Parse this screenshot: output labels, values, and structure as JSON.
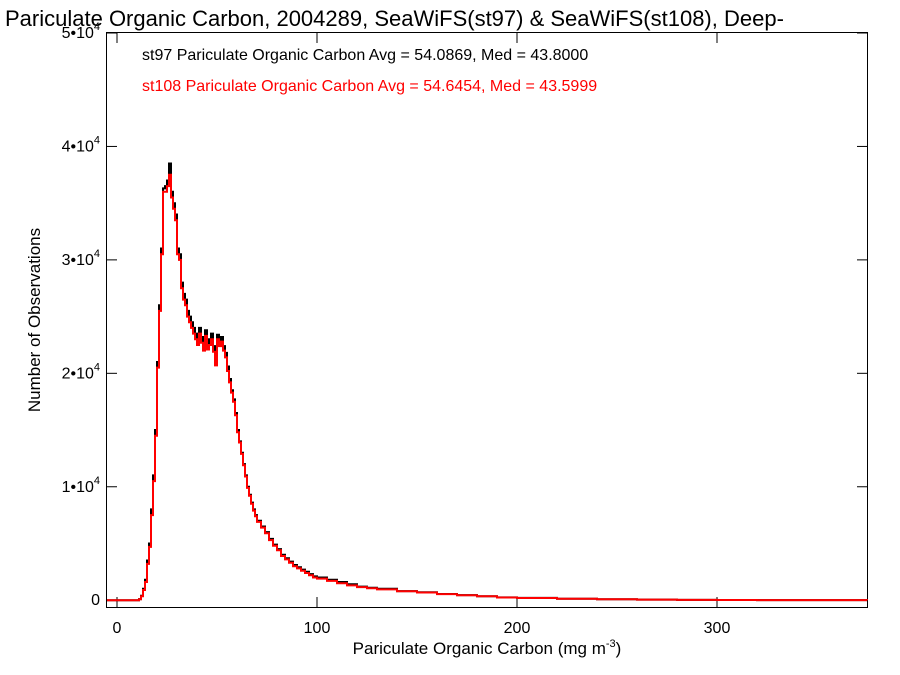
{
  "chart_data": {
    "type": "line",
    "title": "Pariculate Organic Carbon, 2004289, SeaWiFS(st97) & SeaWiFS(st108), Deep-",
    "xlabel": "Pariculate Organic Carbon (mg m",
    "xlabel_sup": "-3",
    "xlabel_end": ")",
    "ylabel": "Number of Observations",
    "xlim": [
      -5,
      375
    ],
    "ylim": [
      -600,
      50000
    ],
    "x_ticks": [
      {
        "value": 0,
        "label": "0"
      },
      {
        "value": 100,
        "label": "100"
      },
      {
        "value": 200,
        "label": "200"
      },
      {
        "value": 300,
        "label": "300"
      }
    ],
    "y_ticks": [
      {
        "value": 0,
        "mant": "0",
        "sup": ""
      },
      {
        "value": 10000,
        "mant": "1•10",
        "sup": "4"
      },
      {
        "value": 20000,
        "mant": "2•10",
        "sup": "4"
      },
      {
        "value": 30000,
        "mant": "3•10",
        "sup": "4"
      },
      {
        "value": 40000,
        "mant": "4•10",
        "sup": "4"
      },
      {
        "value": 50000,
        "mant": "5•10",
        "sup": "4"
      }
    ],
    "grid": false,
    "legend": "top-left",
    "series": [
      {
        "name": "st97 Pariculate Organic Carbon Avg = 54.0869, Med = 43.8000",
        "color": "#000000",
        "x": [
          -5,
          10,
          11,
          12,
          13,
          14,
          15,
          16,
          17,
          18,
          19,
          20,
          21,
          22,
          23,
          24,
          25,
          26,
          27,
          28,
          29,
          30,
          31,
          32,
          33,
          34,
          35,
          36,
          37,
          38,
          39,
          40,
          41,
          42,
          43,
          44,
          45,
          46,
          47,
          48,
          49,
          50,
          51,
          52,
          53,
          54,
          55,
          56,
          57,
          58,
          59,
          60,
          61,
          62,
          63,
          64,
          65,
          66,
          67,
          68,
          69,
          70,
          72,
          74,
          76,
          78,
          80,
          82,
          84,
          86,
          88,
          90,
          92,
          94,
          96,
          98,
          100,
          105,
          110,
          115,
          120,
          125,
          130,
          140,
          150,
          160,
          170,
          180,
          190,
          200,
          220,
          240,
          260,
          280,
          300,
          320,
          340,
          375
        ],
        "y": [
          0,
          0,
          100,
          400,
          1000,
          1800,
          3500,
          5000,
          8000,
          11000,
          15000,
          21000,
          26000,
          31000,
          36300,
          36500,
          37000,
          38500,
          36000,
          35000,
          34000,
          31000,
          30500,
          28000,
          27000,
          26500,
          25500,
          25000,
          24500,
          24000,
          23500,
          23000,
          24000,
          23200,
          22500,
          23800,
          22600,
          23000,
          23500,
          22400,
          21200,
          23400,
          22800,
          23200,
          22400,
          21800,
          20600,
          19500,
          18500,
          17700,
          16500,
          15000,
          14000,
          13000,
          12000,
          11000,
          10000,
          9300,
          8600,
          8000,
          7500,
          7000,
          6500,
          6000,
          5400,
          4900,
          4500,
          4000,
          3700,
          3400,
          3100,
          2900,
          2700,
          2500,
          2300,
          2100,
          2000,
          1800,
          1600,
          1400,
          1200,
          1100,
          1000,
          800,
          700,
          550,
          450,
          350,
          250,
          200,
          130,
          80,
          50,
          30,
          20,
          10,
          5,
          0
        ]
      },
      {
        "name": "st108 Pariculate Organic Carbon Avg = 54.6454, Med = 43.5999",
        "color": "#ff0000",
        "x": [
          -5,
          10,
          11,
          12,
          13,
          14,
          15,
          16,
          17,
          18,
          19,
          20,
          21,
          22,
          23,
          24,
          25,
          26,
          27,
          28,
          29,
          30,
          31,
          32,
          33,
          34,
          35,
          36,
          37,
          38,
          39,
          40,
          41,
          42,
          43,
          44,
          45,
          46,
          47,
          48,
          49,
          50,
          51,
          52,
          53,
          54,
          55,
          56,
          57,
          58,
          59,
          60,
          61,
          62,
          63,
          64,
          65,
          66,
          67,
          68,
          69,
          70,
          72,
          74,
          76,
          78,
          80,
          82,
          84,
          86,
          88,
          90,
          92,
          94,
          96,
          98,
          100,
          105,
          110,
          115,
          120,
          125,
          130,
          140,
          150,
          160,
          170,
          180,
          190,
          200,
          220,
          240,
          260,
          280,
          300,
          320,
          340,
          375
        ],
        "y": [
          0,
          0,
          80,
          350,
          900,
          1600,
          3200,
          4700,
          7500,
          10500,
          14500,
          20500,
          25500,
          30500,
          36000,
          36000,
          36500,
          37500,
          35500,
          34500,
          33500,
          30500,
          30000,
          27500,
          26500,
          26000,
          25000,
          24500,
          24000,
          23500,
          23000,
          22500,
          23500,
          22700,
          22000,
          23300,
          22100,
          22500,
          23000,
          21900,
          20700,
          23000,
          22400,
          22800,
          22000,
          21400,
          20200,
          19200,
          18300,
          17500,
          16300,
          14800,
          13900,
          12900,
          11900,
          10900,
          9900,
          9200,
          8500,
          7900,
          7400,
          6900,
          6400,
          5900,
          5300,
          4800,
          4400,
          3900,
          3600,
          3300,
          3000,
          2800,
          2600,
          2400,
          2200,
          2000,
          1900,
          1700,
          1500,
          1300,
          1150,
          1050,
          950,
          780,
          680,
          540,
          440,
          340,
          240,
          190,
          125,
          75,
          48,
          28,
          18,
          9,
          4,
          0
        ]
      }
    ]
  }
}
